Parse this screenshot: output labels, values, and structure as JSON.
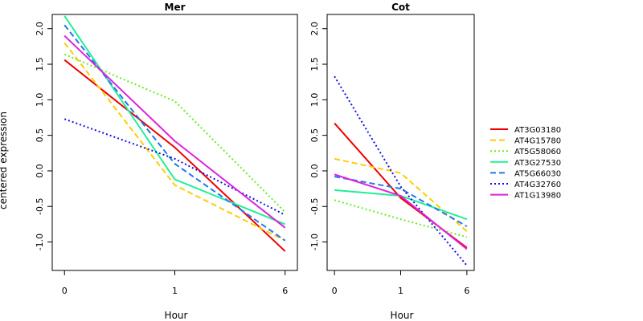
{
  "chart_data": {
    "type": "line",
    "ylabel": "centered expression",
    "xlabel": "Hour",
    "x": [
      "0",
      "1",
      "6"
    ],
    "ylim": [
      -1.4,
      2.2
    ],
    "yticks": [
      "2.0",
      "1.5",
      "1.0",
      "0.5",
      "0.0",
      "-0.5",
      "-1.0"
    ],
    "legend_position": "right",
    "legend": [
      {
        "name": "AT3G03180",
        "color": "#ee0000",
        "dash": "solid"
      },
      {
        "name": "AT4G15780",
        "color": "#ffcc00",
        "dash": "dashed"
      },
      {
        "name": "AT5G58060",
        "color": "#66ee22",
        "dash": "dotted"
      },
      {
        "name": "AT3G27530",
        "color": "#22ee99",
        "dash": "solid"
      },
      {
        "name": "AT5G66030",
        "color": "#2277ee",
        "dash": "dashed"
      },
      {
        "name": "AT4G32760",
        "color": "#1111dd",
        "dash": "dotted"
      },
      {
        "name": "AT1G13980",
        "color": "#dd22dd",
        "dash": "solid"
      }
    ],
    "panels": [
      {
        "title": "Mer",
        "series": [
          {
            "name": "AT3G03180",
            "values": [
              1.56,
              0.33,
              -1.13
            ]
          },
          {
            "name": "AT4G15780",
            "values": [
              1.8,
              -0.2,
              -0.98
            ]
          },
          {
            "name": "AT5G58060",
            "values": [
              1.64,
              0.98,
              -0.58
            ]
          },
          {
            "name": "AT3G27530",
            "values": [
              2.18,
              -0.12,
              -0.75
            ]
          },
          {
            "name": "AT5G66030",
            "values": [
              2.05,
              0.1,
              -0.98
            ]
          },
          {
            "name": "AT4G32760",
            "values": [
              0.73,
              0.17,
              -0.62
            ]
          },
          {
            "name": "AT1G13980",
            "values": [
              1.9,
              0.42,
              -0.8
            ]
          }
        ]
      },
      {
        "title": "Cot",
        "series": [
          {
            "name": "AT3G03180",
            "values": [
              0.67,
              -0.38,
              -1.08
            ]
          },
          {
            "name": "AT4G15780",
            "values": [
              0.17,
              -0.03,
              -0.85
            ]
          },
          {
            "name": "AT5G58060",
            "values": [
              -0.41,
              -0.68,
              -0.93
            ]
          },
          {
            "name": "AT3G27530",
            "values": [
              -0.27,
              -0.35,
              -0.68
            ]
          },
          {
            "name": "AT5G66030",
            "values": [
              -0.08,
              -0.25,
              -0.78
            ]
          },
          {
            "name": "AT4G32760",
            "values": [
              1.33,
              -0.22,
              -1.33
            ]
          },
          {
            "name": "AT1G13980",
            "values": [
              -0.05,
              -0.35,
              -1.1
            ]
          }
        ]
      }
    ]
  }
}
